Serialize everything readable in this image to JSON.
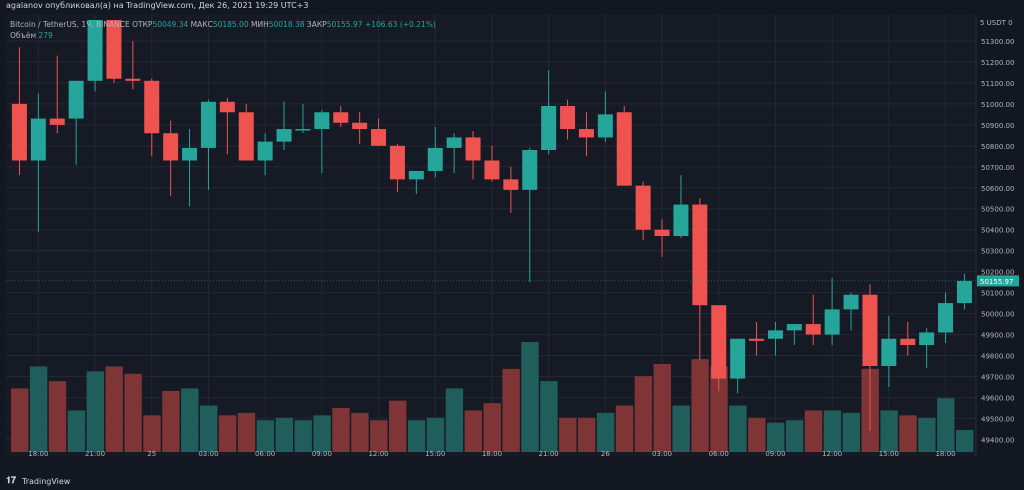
{
  "header": {
    "publish_text": "agalanov опубликовал(а) на TradingView.com, Дек 26, 2021 19:29 UTC+3"
  },
  "legend": {
    "symbol": "Bitcoin / TetherUS, 1Ч, BINANCE",
    "open_label": "ОТКР",
    "open_value": "50049.34",
    "high_label": "МАКС",
    "high_value": "50185.00",
    "low_label": "МИН",
    "low_value": "50018.38",
    "close_label": "ЗАКР",
    "close_value": "50155.97",
    "change": "+106.63 (+0.21%)",
    "volume_label": "Объём",
    "volume_value": "279"
  },
  "price_scale": {
    "currency": "5 USDT 0",
    "last_price_label": "50155.97",
    "last_price": 50155.97
  },
  "footer": {
    "brand": "TradingView"
  },
  "colors": {
    "up": "#26a69a",
    "down": "#ef5350",
    "vol_up": "#1f5e5b",
    "vol_down": "#7f3436",
    "background": "#161a25",
    "grid": "#242836",
    "text": "#b2b5be"
  },
  "chart_data": {
    "type": "candlestick",
    "y_ticks": [
      49400,
      49500,
      49600,
      49700,
      49800,
      49900,
      50000,
      50100,
      50200,
      50300,
      50400,
      50500,
      50600,
      50700,
      50800,
      50900,
      51000,
      51100,
      51200,
      51300
    ],
    "ylim": [
      49340,
      51400
    ],
    "x_tick_labels": [
      {
        "i": 1.5,
        "label": "18:00"
      },
      {
        "i": 4.5,
        "label": "21:00"
      },
      {
        "i": 7.5,
        "label": "25"
      },
      {
        "i": 10.5,
        "label": "03:00"
      },
      {
        "i": 13.5,
        "label": "06:00"
      },
      {
        "i": 16.5,
        "label": "09:00"
      },
      {
        "i": 19.5,
        "label": "12:00"
      },
      {
        "i": 22.5,
        "label": "15:00"
      },
      {
        "i": 25.5,
        "label": "18:00"
      },
      {
        "i": 28.5,
        "label": "21:00"
      },
      {
        "i": 31.5,
        "label": "26"
      },
      {
        "i": 34.5,
        "label": "03:00"
      },
      {
        "i": 37.5,
        "label": "06:00"
      },
      {
        "i": 40.5,
        "label": "09:00"
      },
      {
        "i": 43.5,
        "label": "12:00"
      },
      {
        "i": 46.5,
        "label": "15:00"
      },
      {
        "i": 49.5,
        "label": "18:00"
      }
    ],
    "candles": [
      {
        "o": 51000,
        "h": 51270,
        "l": 50660,
        "c": 50730,
        "v": 2.6
      },
      {
        "o": 50730,
        "h": 51050,
        "l": 50390,
        "c": 50930,
        "v": 3.5
      },
      {
        "o": 50930,
        "h": 51230,
        "l": 50860,
        "c": 50900,
        "v": 2.9
      },
      {
        "o": 50930,
        "h": 51100,
        "l": 50710,
        "c": 51110,
        "v": 1.7
      },
      {
        "o": 51110,
        "h": 51400,
        "l": 51060,
        "c": 51400,
        "v": 3.3
      },
      {
        "o": 51400,
        "h": 51400,
        "l": 51100,
        "c": 51120,
        "v": 3.5
      },
      {
        "o": 51120,
        "h": 51300,
        "l": 51070,
        "c": 51110,
        "v": 3.2
      },
      {
        "o": 51110,
        "h": 51120,
        "l": 50750,
        "c": 50860,
        "v": 1.5
      },
      {
        "o": 50860,
        "h": 50920,
        "l": 50560,
        "c": 50730,
        "v": 2.5
      },
      {
        "o": 50730,
        "h": 50880,
        "l": 50510,
        "c": 50790,
        "v": 2.6
      },
      {
        "o": 50790,
        "h": 51020,
        "l": 50590,
        "c": 51010,
        "v": 1.9
      },
      {
        "o": 51010,
        "h": 51030,
        "l": 50760,
        "c": 50960,
        "v": 1.5
      },
      {
        "o": 50960,
        "h": 51000,
        "l": 50730,
        "c": 50730,
        "v": 1.6
      },
      {
        "o": 50730,
        "h": 50860,
        "l": 50660,
        "c": 50820,
        "v": 1.3
      },
      {
        "o": 50820,
        "h": 51010,
        "l": 50780,
        "c": 50880,
        "v": 1.4
      },
      {
        "o": 50880,
        "h": 51000,
        "l": 50860,
        "c": 50880,
        "v": 1.3
      },
      {
        "o": 50880,
        "h": 50970,
        "l": 50670,
        "c": 50960,
        "v": 1.5
      },
      {
        "o": 50960,
        "h": 50990,
        "l": 50890,
        "c": 50910,
        "v": 1.8
      },
      {
        "o": 50910,
        "h": 50960,
        "l": 50810,
        "c": 50880,
        "v": 1.6
      },
      {
        "o": 50880,
        "h": 50930,
        "l": 50800,
        "c": 50800,
        "v": 1.3
      },
      {
        "o": 50800,
        "h": 50810,
        "l": 50580,
        "c": 50640,
        "v": 2.1
      },
      {
        "o": 50640,
        "h": 50680,
        "l": 50570,
        "c": 50680,
        "v": 1.3
      },
      {
        "o": 50680,
        "h": 50890,
        "l": 50650,
        "c": 50790,
        "v": 1.4
      },
      {
        "o": 50790,
        "h": 50860,
        "l": 50670,
        "c": 50840,
        "v": 2.6
      },
      {
        "o": 50840,
        "h": 50870,
        "l": 50640,
        "c": 50730,
        "v": 1.7
      },
      {
        "o": 50730,
        "h": 50800,
        "l": 50630,
        "c": 50640,
        "v": 2.0
      },
      {
        "o": 50640,
        "h": 50700,
        "l": 50480,
        "c": 50590,
        "v": 3.4
      },
      {
        "o": 50590,
        "h": 50790,
        "l": 50150,
        "c": 50780,
        "v": 4.5
      },
      {
        "o": 50780,
        "h": 51160,
        "l": 50760,
        "c": 50990,
        "v": 2.9
      },
      {
        "o": 50990,
        "h": 51020,
        "l": 50830,
        "c": 50880,
        "v": 1.4
      },
      {
        "o": 50880,
        "h": 50960,
        "l": 50750,
        "c": 50840,
        "v": 1.4
      },
      {
        "o": 50840,
        "h": 51060,
        "l": 50820,
        "c": 50950,
        "v": 1.6
      },
      {
        "o": 50960,
        "h": 50990,
        "l": 50610,
        "c": 50610,
        "v": 1.9
      },
      {
        "o": 50610,
        "h": 50630,
        "l": 50350,
        "c": 50400,
        "v": 3.1
      },
      {
        "o": 50400,
        "h": 50450,
        "l": 50270,
        "c": 50370,
        "v": 3.6
      },
      {
        "o": 50370,
        "h": 50660,
        "l": 50360,
        "c": 50520,
        "v": 1.9
      },
      {
        "o": 50520,
        "h": 50550,
        "l": 49780,
        "c": 50040,
        "v": 3.8
      },
      {
        "o": 50040,
        "h": 50040,
        "l": 49630,
        "c": 49690,
        "v": 3.5
      },
      {
        "o": 49690,
        "h": 49880,
        "l": 49620,
        "c": 49880,
        "v": 1.9
      },
      {
        "o": 49880,
        "h": 49960,
        "l": 49800,
        "c": 49870,
        "v": 1.4
      },
      {
        "o": 49880,
        "h": 49960,
        "l": 49800,
        "c": 49920,
        "v": 1.2
      },
      {
        "o": 49920,
        "h": 49950,
        "l": 49850,
        "c": 49950,
        "v": 1.3
      },
      {
        "o": 49950,
        "h": 50090,
        "l": 49850,
        "c": 49900,
        "v": 1.7
      },
      {
        "o": 49900,
        "h": 50170,
        "l": 49850,
        "c": 50020,
        "v": 1.7
      },
      {
        "o": 50020,
        "h": 50100,
        "l": 49920,
        "c": 50090,
        "v": 1.6
      },
      {
        "o": 50090,
        "h": 50140,
        "l": 49440,
        "c": 49750,
        "v": 3.4
      },
      {
        "o": 49750,
        "h": 49990,
        "l": 49650,
        "c": 49880,
        "v": 1.7
      },
      {
        "o": 49880,
        "h": 49960,
        "l": 49800,
        "c": 49850,
        "v": 1.5
      },
      {
        "o": 49850,
        "h": 49930,
        "l": 49740,
        "c": 49910,
        "v": 1.4
      },
      {
        "o": 49910,
        "h": 50100,
        "l": 49860,
        "c": 50050,
        "v": 2.2
      },
      {
        "o": 50050,
        "h": 50190,
        "l": 50020,
        "c": 50155.97,
        "v": 0.9
      }
    ],
    "volume_max": 4.5
  }
}
